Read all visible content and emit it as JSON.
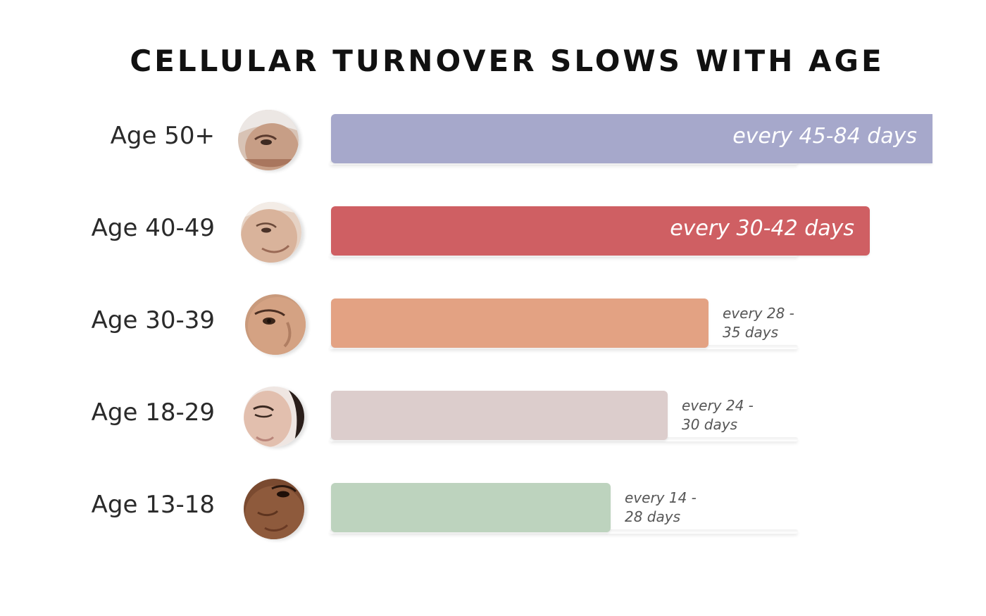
{
  "chart_data": {
    "type": "bar",
    "orientation": "horizontal",
    "title": "CELLULAR TURNOVER SLOWS WITH AGE",
    "xlabel": "",
    "ylabel": "",
    "grid": false,
    "categories": [
      "Age 50+",
      "Age 40-49",
      "Age 30-39",
      "Age 18-29",
      "Age 13-18"
    ],
    "series": [
      {
        "range_min": [
          45,
          30,
          28,
          24,
          14
        ],
        "range_max": [
          84,
          42,
          35,
          30,
          28
        ],
        "values": [
          84,
          42,
          35,
          30,
          28
        ]
      }
    ],
    "bar_labels": [
      {
        "line1": "every 45-84 days",
        "line2": ""
      },
      {
        "line1": "every 30-42 days",
        "line2": ""
      },
      {
        "line1": "every 28 -",
        "line2": "35 days"
      },
      {
        "line1": "every 24 -",
        "line2": "30 days"
      },
      {
        "line1": "every 14 -",
        "line2": "28 days"
      }
    ],
    "colors": [
      "#a6a8cb",
      "#cf5f63",
      "#e3a283",
      "#dccdcc",
      "#bdd3be"
    ],
    "avatar_icons": [
      "face-photo-icon",
      "face-photo-icon",
      "face-photo-icon",
      "face-photo-icon",
      "face-photo-icon"
    ]
  }
}
